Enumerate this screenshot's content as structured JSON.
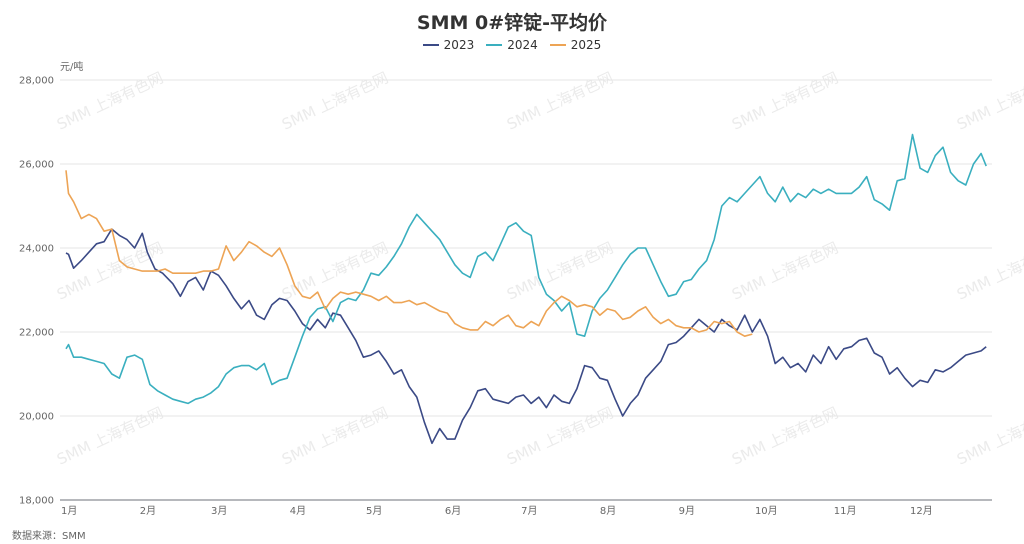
{
  "chart_data": {
    "type": "line",
    "title": "SMM 0#锌锭-平均价",
    "ylabel": "元/吨",
    "xlabel": "",
    "ylim": [
      18000,
      28000
    ],
    "xlim": [
      1,
      365
    ],
    "y_ticks": [
      "18,000",
      "20,000",
      "22,000",
      "24,000",
      "26,000",
      "28,000"
    ],
    "y_tick_values": [
      18000,
      20000,
      22000,
      24000,
      26000,
      28000
    ],
    "x_ticks": [
      "1月",
      "2月",
      "3月",
      "4月",
      "5月",
      "6月",
      "7月",
      "8月",
      "9月",
      "10月",
      "11月",
      "12月"
    ],
    "x_tick_days": [
      1,
      32,
      60,
      91,
      121,
      152,
      182,
      213,
      244,
      274,
      305,
      335
    ],
    "grid": true,
    "legend": "top-center",
    "source": "数据来源：SMM",
    "watermark": "SMM 上海有色网",
    "series": [
      {
        "name": "2023",
        "color": "#3b4a86",
        "x": [
          1,
          2,
          4,
          7,
          10,
          13,
          16,
          19,
          22,
          25,
          28,
          31,
          33,
          36,
          39,
          43,
          46,
          49,
          52,
          55,
          58,
          61,
          64,
          67,
          70,
          73,
          76,
          79,
          82,
          85,
          88,
          91,
          94,
          97,
          100,
          103,
          106,
          109,
          112,
          115,
          118,
          121,
          124,
          127,
          130,
          133,
          136,
          139,
          142,
          145,
          148,
          151,
          154,
          157,
          160,
          163,
          166,
          169,
          172,
          175,
          178,
          181,
          184,
          187,
          190,
          193,
          196,
          199,
          202,
          205,
          208,
          211,
          214,
          217,
          220,
          223,
          226,
          229,
          232,
          235,
          238,
          241,
          244,
          247,
          250,
          253,
          256,
          259,
          262,
          265,
          268,
          271,
          274,
          277,
          280,
          283,
          286,
          289,
          292,
          295,
          298,
          301,
          304,
          307,
          310,
          313,
          316,
          319,
          322,
          325,
          328,
          331,
          334,
          337,
          340,
          343,
          346,
          349,
          352,
          355,
          358,
          361,
          363
        ],
        "values": [
          23880,
          23850,
          23520,
          23700,
          23900,
          24100,
          24150,
          24450,
          24300,
          24200,
          24000,
          24350,
          23900,
          23500,
          23400,
          23150,
          22850,
          23200,
          23300,
          23000,
          23450,
          23350,
          23100,
          22800,
          22550,
          22750,
          22400,
          22300,
          22650,
          22800,
          22750,
          22500,
          22200,
          22050,
          22300,
          22100,
          22450,
          22400,
          22100,
          21800,
          21400,
          21450,
          21550,
          21300,
          21000,
          21100,
          20700,
          20450,
          19850,
          19350,
          19700,
          19450,
          19450,
          19900,
          20200,
          20600,
          20650,
          20400,
          20350,
          20300,
          20450,
          20500,
          20300,
          20450,
          20200,
          20500,
          20350,
          20300,
          20650,
          21200,
          21150,
          20900,
          20850,
          20400,
          20000,
          20300,
          20500,
          20900,
          21100,
          21300,
          21700,
          21750,
          21900,
          22100,
          22300,
          22150,
          22000,
          22300,
          22150,
          22050,
          22400,
          22000,
          22300,
          21900,
          21250,
          21400,
          21150,
          21250,
          21050,
          21450,
          21250,
          21650,
          21350,
          21600,
          21650,
          21800,
          21850,
          21500,
          21400,
          21000,
          21150,
          20900,
          20700,
          20850,
          20800,
          21100,
          21050,
          21150,
          21300,
          21450,
          21500,
          21550,
          21650
        ]
      },
      {
        "name": "2024",
        "color": "#3aafbf",
        "x": [
          1,
          2,
          4,
          7,
          10,
          13,
          16,
          19,
          22,
          25,
          28,
          31,
          34,
          37,
          40,
          43,
          46,
          49,
          52,
          55,
          58,
          61,
          64,
          67,
          70,
          73,
          76,
          79,
          82,
          85,
          88,
          91,
          94,
          97,
          100,
          103,
          106,
          109,
          112,
          115,
          118,
          121,
          124,
          127,
          130,
          133,
          136,
          139,
          142,
          145,
          148,
          151,
          154,
          157,
          160,
          163,
          166,
          169,
          172,
          175,
          178,
          181,
          184,
          187,
          190,
          193,
          196,
          199,
          202,
          205,
          208,
          211,
          214,
          217,
          220,
          223,
          226,
          229,
          232,
          235,
          238,
          241,
          244,
          247,
          250,
          253,
          256,
          259,
          262,
          265,
          268,
          271,
          274,
          277,
          280,
          283,
          286,
          289,
          292,
          295,
          298,
          301,
          304,
          307,
          310,
          313,
          316,
          319,
          322,
          325,
          328,
          331,
          334,
          337,
          340,
          343,
          346,
          349,
          352,
          355,
          358,
          361,
          363
        ],
        "values": [
          21600,
          21700,
          21400,
          21400,
          21350,
          21300,
          21250,
          21000,
          20900,
          21400,
          21450,
          21350,
          20750,
          20600,
          20500,
          20400,
          20350,
          20300,
          20400,
          20450,
          20550,
          20700,
          21000,
          21150,
          21200,
          21200,
          21100,
          21250,
          20750,
          20850,
          20900,
          21400,
          21900,
          22350,
          22550,
          22600,
          22250,
          22700,
          22800,
          22750,
          23000,
          23400,
          23350,
          23550,
          23800,
          24100,
          24500,
          24800,
          24600,
          24400,
          24200,
          23900,
          23600,
          23400,
          23300,
          23800,
          23900,
          23700,
          24100,
          24500,
          24600,
          24400,
          24300,
          23300,
          22900,
          22750,
          22500,
          22700,
          21950,
          21900,
          22500,
          22800,
          23000,
          23300,
          23600,
          23850,
          24000,
          24000,
          23600,
          23200,
          22850,
          22900,
          23200,
          23250,
          23500,
          23700,
          24200,
          25000,
          25200,
          25100,
          25300,
          25500,
          25700,
          25300,
          25100,
          25450,
          25100,
          25300,
          25200,
          25400,
          25300,
          25400,
          25300,
          25300,
          25300,
          25450,
          25700,
          25150,
          25050,
          24900,
          25600,
          25650,
          26700,
          25900,
          25800,
          26200,
          26400,
          25800,
          25600,
          25500,
          26000,
          26250,
          25950
        ]
      },
      {
        "name": "2025",
        "color": "#eda455",
        "x": [
          1,
          2,
          4,
          7,
          10,
          13,
          16,
          19,
          22,
          25,
          28,
          31,
          34,
          37,
          40,
          43,
          46,
          49,
          52,
          55,
          58,
          61,
          64,
          67,
          70,
          73,
          76,
          79,
          82,
          85,
          88,
          91,
          94,
          97,
          100,
          103,
          106,
          109,
          112,
          115,
          118,
          121,
          124,
          127,
          130,
          133,
          136,
          139,
          142,
          145,
          148,
          151,
          154,
          157,
          160,
          163,
          166,
          169,
          172,
          175,
          178,
          181,
          184,
          187,
          190,
          193,
          196,
          199,
          202,
          205,
          208,
          211,
          214,
          217,
          220,
          223,
          226,
          229,
          232,
          235,
          238,
          241,
          244,
          247,
          250,
          253,
          256,
          259,
          262,
          265,
          268,
          271
        ],
        "values": [
          25850,
          25300,
          25100,
          24700,
          24800,
          24700,
          24400,
          24450,
          23700,
          23550,
          23500,
          23450,
          23450,
          23450,
          23500,
          23400,
          23400,
          23400,
          23400,
          23450,
          23450,
          23500,
          24050,
          23700,
          23900,
          24150,
          24050,
          23900,
          23800,
          24000,
          23600,
          23100,
          22850,
          22800,
          22950,
          22550,
          22800,
          22950,
          22900,
          22950,
          22900,
          22850,
          22750,
          22850,
          22700,
          22700,
          22750,
          22650,
          22700,
          22600,
          22500,
          22450,
          22200,
          22100,
          22050,
          22050,
          22250,
          22150,
          22300,
          22400,
          22150,
          22100,
          22250,
          22150,
          22500,
          22700,
          22850,
          22750,
          22600,
          22650,
          22600,
          22400,
          22550,
          22500,
          22300,
          22350,
          22500,
          22600,
          22350,
          22200,
          22300,
          22150,
          22100,
          22100,
          22000,
          22050,
          22250,
          22200,
          22250,
          22000,
          21900,
          21950
        ]
      }
    ]
  }
}
